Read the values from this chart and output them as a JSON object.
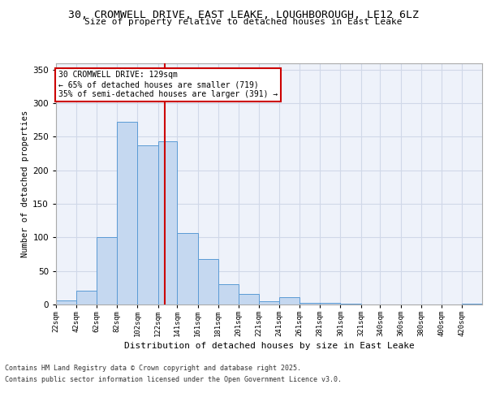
{
  "title": "30, CROMWELL DRIVE, EAST LEAKE, LOUGHBOROUGH, LE12 6LZ",
  "subtitle": "Size of property relative to detached houses in East Leake",
  "xlabel": "Distribution of detached houses by size in East Leake",
  "ylabel": "Number of detached properties",
  "bin_labels": [
    "22sqm",
    "42sqm",
    "62sqm",
    "82sqm",
    "102sqm",
    "122sqm",
    "141sqm",
    "161sqm",
    "181sqm",
    "201sqm",
    "221sqm",
    "241sqm",
    "261sqm",
    "281sqm",
    "301sqm",
    "321sqm",
    "340sqm",
    "360sqm",
    "380sqm",
    "400sqm",
    "420sqm"
  ],
  "bar_values": [
    6,
    20,
    100,
    272,
    237,
    243,
    107,
    68,
    30,
    16,
    5,
    11,
    3,
    3,
    1,
    0,
    0,
    0,
    0,
    0,
    1
  ],
  "bar_color": "#c5d8f0",
  "bar_edge_color": "#5b9bd5",
  "grid_color": "#d0d8e8",
  "background_color": "#eef2fa",
  "vline_x": 129,
  "vline_color": "#cc0000",
  "annotation_line1": "30 CROMWELL DRIVE: 129sqm",
  "annotation_line2": "← 65% of detached houses are smaller (719)",
  "annotation_line3": "35% of semi-detached houses are larger (391) →",
  "annotation_box_color": "white",
  "annotation_box_edge": "#cc0000",
  "ylim": [
    0,
    360
  ],
  "yticks": [
    0,
    50,
    100,
    150,
    200,
    250,
    300,
    350
  ],
  "footer_line1": "Contains HM Land Registry data © Crown copyright and database right 2025.",
  "footer_line2": "Contains public sector information licensed under the Open Government Licence v3.0.",
  "bin_edges": [
    22,
    42,
    62,
    82,
    102,
    122,
    141,
    161,
    181,
    201,
    221,
    241,
    261,
    281,
    301,
    321,
    340,
    360,
    380,
    400,
    420
  ],
  "xlim_left": 22,
  "xlim_right": 440
}
